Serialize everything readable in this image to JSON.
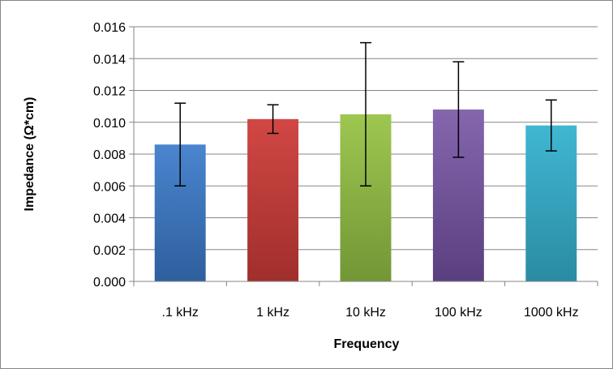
{
  "chart_data": {
    "type": "bar",
    "title": "",
    "xlabel": "Frequency",
    "ylabel": "Impedance (Ω*cm)",
    "ylim": [
      0,
      0.016
    ],
    "yticks": [
      "0.000",
      "0.002",
      "0.004",
      "0.006",
      "0.008",
      "0.010",
      "0.012",
      "0.014",
      "0.016"
    ],
    "grid": true,
    "legend": "none",
    "categories": [
      ".1 kHz",
      "1 kHz",
      "10 kHz",
      "100 kHz",
      "1000 kHz"
    ],
    "values": [
      0.0086,
      0.0102,
      0.0105,
      0.0108,
      0.0098
    ],
    "error_bars": [
      {
        "low": 0.006,
        "high": 0.0112
      },
      {
        "low": 0.0093,
        "high": 0.0111
      },
      {
        "low": 0.006,
        "high": 0.015
      },
      {
        "low": 0.0078,
        "high": 0.0138
      },
      {
        "low": 0.0082,
        "high": 0.0114
      }
    ],
    "colors": [
      {
        "top": "#4a85cf",
        "bottom": "#2f5f9d"
      },
      {
        "top": "#d14744",
        "bottom": "#a02f2c"
      },
      {
        "top": "#9dc750",
        "bottom": "#739636"
      },
      {
        "top": "#8566ae",
        "bottom": "#5a3f80"
      },
      {
        "top": "#40b7d2",
        "bottom": "#2a8ba3"
      }
    ]
  }
}
